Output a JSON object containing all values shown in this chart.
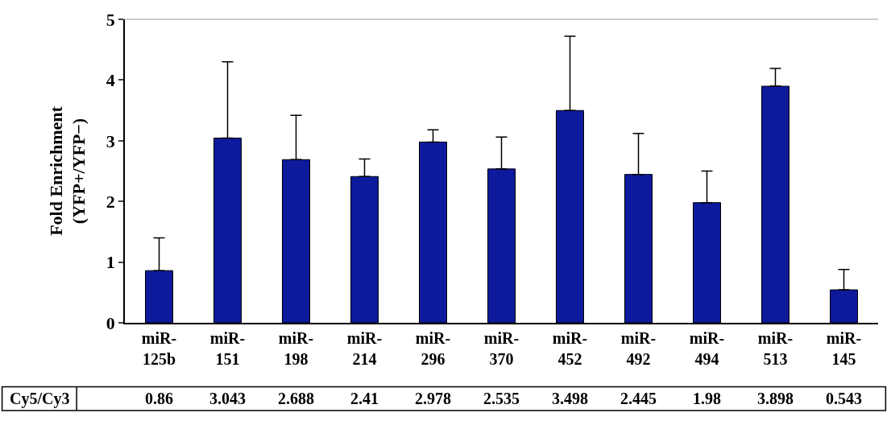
{
  "chart_data": {
    "type": "bar",
    "ylabel": "Fold Enrichment\n(YFP+/YFP−)",
    "categories": [
      "miR-125b",
      "miR-151",
      "miR-198",
      "miR-214",
      "miR-296",
      "miR-370",
      "miR-452",
      "miR-492",
      "miR-494",
      "miR-513",
      "miR-145"
    ],
    "values": [
      0.86,
      3.043,
      2.688,
      2.41,
      2.978,
      2.535,
      3.498,
      2.445,
      1.98,
      3.898,
      0.543
    ],
    "errors": [
      [
        0.86,
        1.4
      ],
      [
        3.043,
        4.3
      ],
      [
        2.688,
        3.42
      ],
      [
        2.41,
        2.7
      ],
      [
        2.978,
        3.18
      ],
      [
        2.535,
        3.06
      ],
      [
        3.498,
        4.72
      ],
      [
        2.445,
        3.12
      ],
      [
        1.98,
        2.5
      ],
      [
        3.898,
        4.19
      ],
      [
        0.543,
        0.88
      ]
    ],
    "color": "#0d1a9c",
    "ylim": [
      0,
      5
    ],
    "yticks": [
      0,
      1,
      2,
      3,
      4,
      5
    ],
    "data_labels": true,
    "annotations": [
      "Cy5/Cy3"
    ]
  }
}
